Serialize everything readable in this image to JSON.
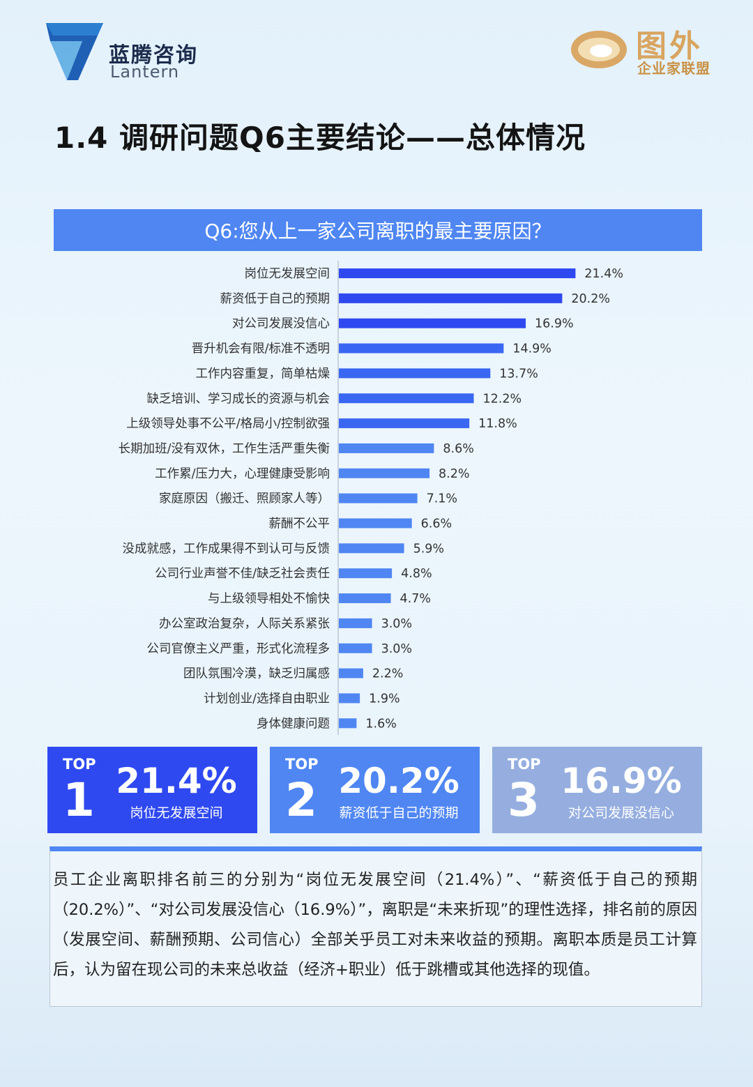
{
  "header": {
    "brand_cn": "蓝腾咨询",
    "brand_en": "Lantern",
    "partner_main": "图外",
    "partner_sub": "企业家联盟"
  },
  "page_title": "1.4 调研问题Q6主要结论——总体情况",
  "question": "Q6:您从上一家公司离职的最主要原因？",
  "colors": {
    "bar_top": "#2f49f0",
    "bar_mid": "#3a67f2",
    "bar_low": "#4f86f2",
    "banner": "#4f86f2",
    "top1": "#2f49f0",
    "top2": "#4f86f2",
    "top3": "#95aedf"
  },
  "chart_data": {
    "type": "bar",
    "orientation": "horizontal",
    "title": "Q6:您从上一家公司离职的最主要原因？",
    "categories": [
      "岗位无发展空间",
      "薪资低于自己的预期",
      "对公司发展没信心",
      "晋升机会有限/标准不透明",
      "工作内容重复，简单枯燥",
      "缺乏培训、学习成长的资源与机会",
      "上级领导处事不公平/格局小/控制欲强",
      "长期加班/没有双休，工作生活严重失衡",
      "工作累/压力大，心理健康受影响",
      "家庭原因（搬迁、照顾家人等）",
      "薪酬不公平",
      "没成就感，工作成果得不到认可与反馈",
      "公司行业声誉不佳/缺乏社会责任",
      "与上级领导相处不愉快",
      "办公室政治复杂，人际关系紧张",
      "公司官僚主义严重，形式化流程多",
      "团队氛围冷漠，缺乏归属感",
      "计划创业/选择自由职业",
      "身体健康问题"
    ],
    "values": [
      21.4,
      20.2,
      16.9,
      14.9,
      13.7,
      12.2,
      11.8,
      8.6,
      8.2,
      7.1,
      6.6,
      5.9,
      4.8,
      4.7,
      3.0,
      3.0,
      2.2,
      1.9,
      1.6
    ],
    "value_labels": [
      "21.4%",
      "20.2%",
      "16.9%",
      "14.9%",
      "13.7%",
      "12.2%",
      "11.8%",
      "8.6%",
      "8.2%",
      "7.1%",
      "6.6%",
      "5.9%",
      "4.8%",
      "4.7%",
      "3.0%",
      "3.0%",
      "2.2%",
      "1.9%",
      "1.6%"
    ],
    "unit": "%",
    "xlim": [
      0,
      25
    ]
  },
  "top_cards": [
    {
      "word": "TOP",
      "rank": "1",
      "pct": "21.4%",
      "label": "岗位无发展空间"
    },
    {
      "word": "TOP",
      "rank": "2",
      "pct": "20.2%",
      "label": "薪资低于自己的预期"
    },
    {
      "word": "TOP",
      "rank": "3",
      "pct": "16.9%",
      "label": "对公司发展没信心"
    }
  ],
  "summary": "员工企业离职排名前三的分别为“岗位无发展空间（21.4%）”、“薪资低于自己的预期（20.2%）”、“对公司发展没信心（16.9%）”，离职是“未来折现”的理性选择，排名前的原因（发展空间、薪酬预期、公司信心）全部关乎员工对未来收益的预期。离职本质是员工计算后，认为留在现公司的未来总收益（经济+职业）低于跳槽或其他选择的现值。"
}
